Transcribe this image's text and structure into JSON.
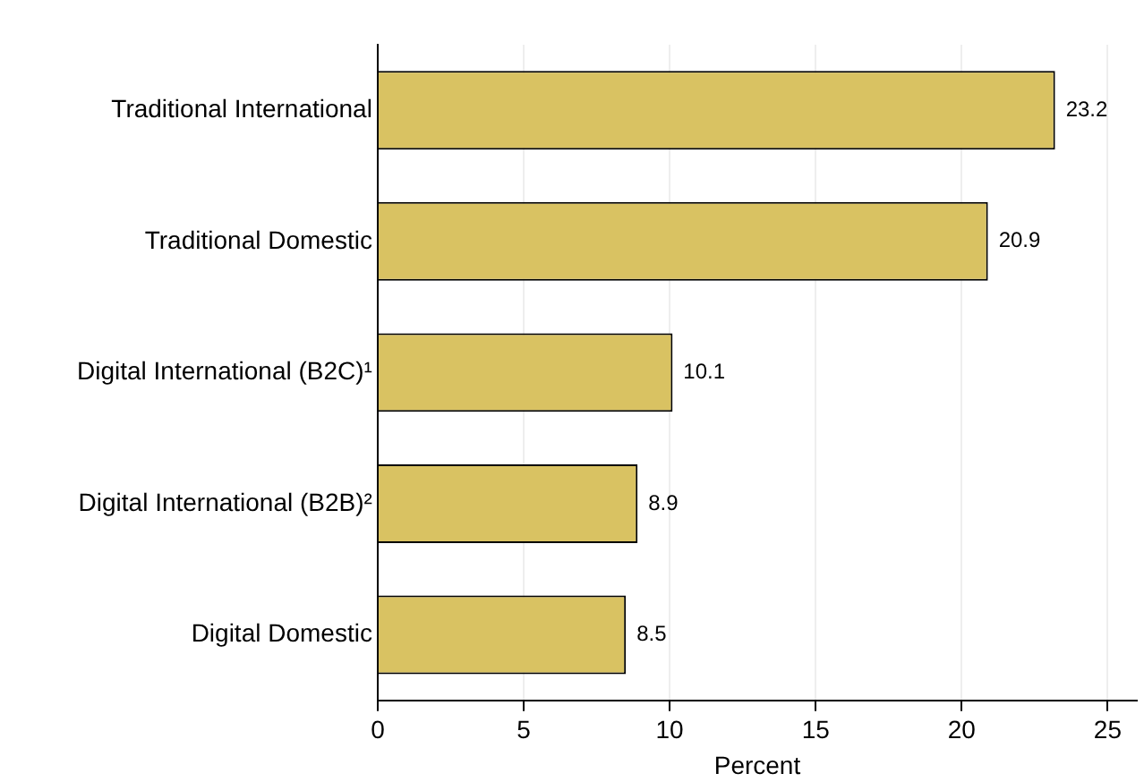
{
  "chart_data": {
    "type": "bar",
    "orientation": "horizontal",
    "xlabel": "Percent",
    "categories": [
      "Traditional International",
      "Traditional Domestic",
      "Digital International (B2C)¹",
      "Digital International (B2B)²",
      "Digital Domestic"
    ],
    "values": [
      23.2,
      20.9,
      10.1,
      8.9,
      8.5
    ],
    "color": "#d9c262",
    "xlim": [
      0,
      26
    ],
    "xticks": [
      0,
      5,
      10,
      15,
      20,
      25
    ],
    "grid": "x",
    "data_labels": true,
    "legend": false
  }
}
